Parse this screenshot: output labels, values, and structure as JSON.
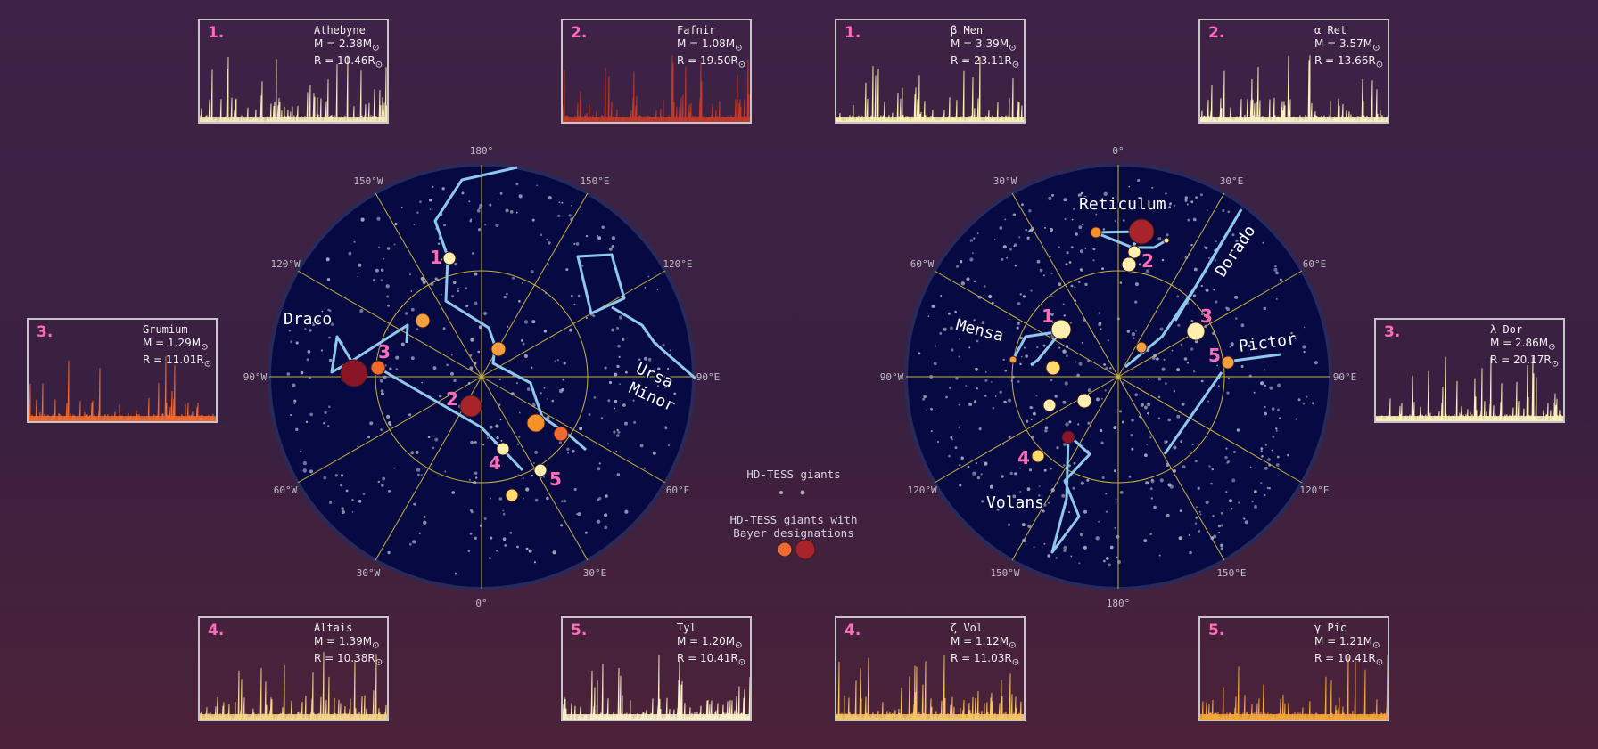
{
  "north_sky": {
    "meridian_labels": [
      "180°",
      "150°E",
      "120°E",
      "90°E",
      "60°E",
      "30°E",
      "0°",
      "30°W",
      "60°W",
      "90°W",
      "120°W",
      "150°W"
    ],
    "constellations": [
      "Draco",
      "Ursa",
      "Minor"
    ],
    "star_numbers": [
      "1",
      "2",
      "3",
      "4",
      "5"
    ]
  },
  "south_sky": {
    "meridian_labels": [
      "0°",
      "30°E",
      "60°E",
      "90°E",
      "120°E",
      "150°E",
      "180°",
      "150°W",
      "120°W",
      "90°W",
      "60°W",
      "30°W"
    ],
    "constellations": [
      "Reticulum",
      "Dorado",
      "Mensa",
      "Pictor",
      "Volans"
    ],
    "star_numbers": [
      "1",
      "2",
      "3",
      "4",
      "5"
    ]
  },
  "legend": {
    "giants_label": "HD-TESS giants",
    "bayer_label_line1": "HD-TESS giants with",
    "bayer_label_line2": "Bayer designations"
  },
  "panels": [
    {
      "number": "1.",
      "name": "Athebyne",
      "mass": "M = 2.38M",
      "radius": "R = 10.46R",
      "color": "#f5e6b8"
    },
    {
      "number": "2.",
      "name": "Fafnir",
      "mass": "M = 1.08M",
      "radius": "R = 19.50R",
      "color": "#c0392b"
    },
    {
      "number": "1.",
      "name": "β Men",
      "mass": "M = 3.39M",
      "radius": "R = 23.11R",
      "color": "#fbeeb0"
    },
    {
      "number": "2.",
      "name": "α Ret",
      "mass": "M = 3.57M",
      "radius": "R = 13.66R",
      "color": "#fbf0c0"
    },
    {
      "number": "3.",
      "name": "Grumium",
      "mass": "M = 1.29M",
      "radius": "R = 11.01R",
      "color": "#ee6a30"
    },
    {
      "number": "3.",
      "name": "λ Dor",
      "mass": "M = 2.86M",
      "radius": "R = 20.17R",
      "color": "#fbeeb8"
    },
    {
      "number": "4.",
      "name": "Altais",
      "mass": "M = 1.39M",
      "radius": "R = 10.38R",
      "color": "#f5d48a"
    },
    {
      "number": "5.",
      "name": "Tyl",
      "mass": "M = 1.20M",
      "radius": "R = 10.41R",
      "color": "#fbeec8"
    },
    {
      "number": "4.",
      "name": "ζ Vol",
      "mass": "M = 1.12M",
      "radius": "R = 11.03R",
      "color": "#f7c366"
    },
    {
      "number": "5.",
      "name": "γ Pic",
      "mass": "M = 1.21M",
      "radius": "R = 10.41R",
      "color": "#f5a53a"
    }
  ],
  "sun_symbol": "⊙",
  "colors": {
    "sky": "#070a42",
    "grid": "#c9b13a",
    "constellation_line": "#8ec8ec",
    "number_label": "#ff6db8",
    "star_pale": "#fff0b0",
    "star_orange": "#f5a040",
    "star_red": "#a8242a"
  }
}
